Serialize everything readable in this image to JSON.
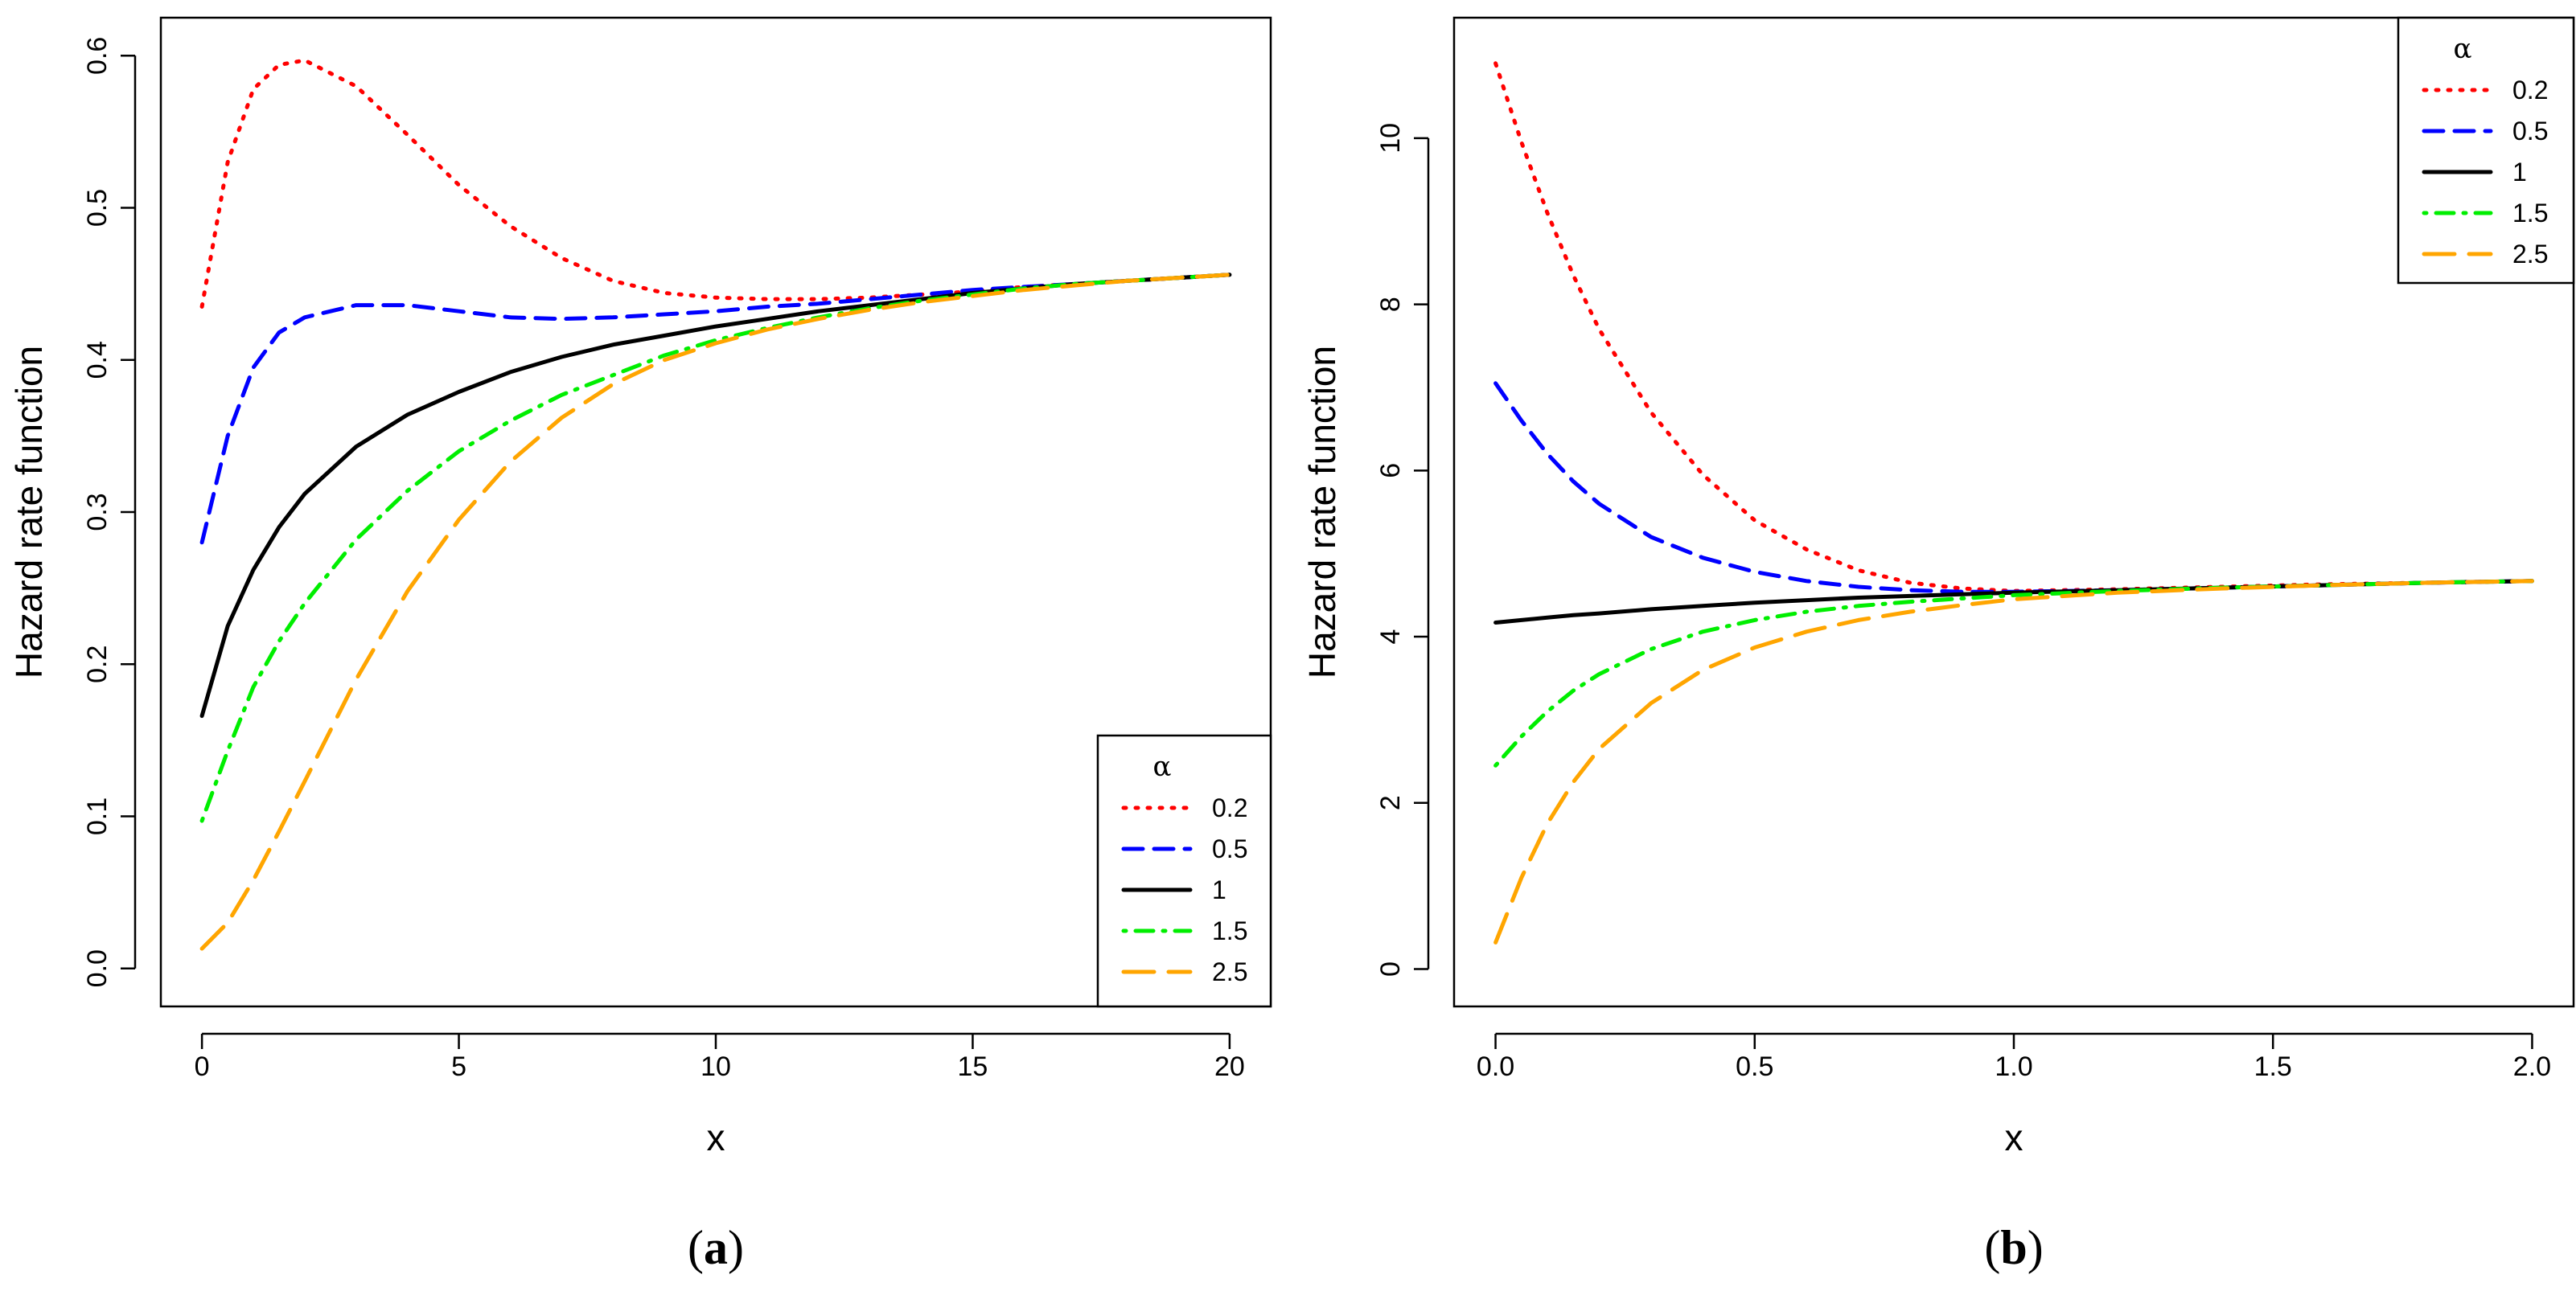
{
  "chart_data": [
    {
      "type": "line",
      "panel_label": "a",
      "xlabel": "x",
      "ylabel": "Hazard rate function",
      "xlim": [
        0,
        20
      ],
      "ylim": [
        0,
        0.6
      ],
      "xticks": [
        0,
        5,
        10,
        15,
        20
      ],
      "xtick_labels": [
        "0",
        "5",
        "10",
        "15",
        "20"
      ],
      "yticks": [
        0.0,
        0.1,
        0.2,
        0.3,
        0.4,
        0.5,
        0.6
      ],
      "ytick_labels": [
        "0.0",
        "0.1",
        "0.2",
        "0.3",
        "0.4",
        "0.5",
        "0.6"
      ],
      "legend": {
        "title": "α",
        "position": "bottom-right"
      },
      "x": [
        0,
        0.5,
        1,
        1.5,
        2,
        3,
        4,
        5,
        6,
        7,
        8,
        9,
        10,
        11,
        12,
        13,
        14,
        15,
        16,
        17,
        18,
        19,
        20
      ],
      "series": [
        {
          "name": "0.2",
          "color": "#ff0000",
          "dash": "dotted",
          "values": [
            0.435,
            0.53,
            0.578,
            0.594,
            0.597,
            0.58,
            0.548,
            0.515,
            0.488,
            0.467,
            0.452,
            0.444,
            0.441,
            0.44,
            0.44,
            0.441,
            0.443,
            0.445,
            0.448,
            0.45,
            0.452,
            0.454,
            0.456
          ]
        },
        {
          "name": "0.5",
          "color": "#0000ff",
          "dash": "dashed",
          "values": [
            0.28,
            0.35,
            0.395,
            0.418,
            0.428,
            0.436,
            0.436,
            0.432,
            0.428,
            0.427,
            0.428,
            0.43,
            0.432,
            0.435,
            0.437,
            0.44,
            0.443,
            0.446,
            0.448,
            0.45,
            0.452,
            0.454,
            0.456
          ]
        },
        {
          "name": "1",
          "color": "#000000",
          "dash": "solid",
          "values": [
            0.166,
            0.225,
            0.262,
            0.29,
            0.312,
            0.343,
            0.364,
            0.379,
            0.392,
            0.402,
            0.41,
            0.416,
            0.422,
            0.427,
            0.432,
            0.436,
            0.44,
            0.444,
            0.447,
            0.45,
            0.452,
            0.454,
            0.456
          ]
        },
        {
          "name": "1.5",
          "color": "#00ee00",
          "dash": "dotdash",
          "values": [
            0.097,
            0.143,
            0.185,
            0.215,
            0.24,
            0.282,
            0.314,
            0.34,
            0.36,
            0.377,
            0.39,
            0.403,
            0.413,
            0.421,
            0.428,
            0.434,
            0.439,
            0.443,
            0.447,
            0.45,
            0.452,
            0.454,
            0.456
          ]
        },
        {
          "name": "2.5",
          "color": "#ffa500",
          "dash": "longdash",
          "values": [
            0.013,
            0.03,
            0.058,
            0.09,
            0.123,
            0.19,
            0.248,
            0.295,
            0.333,
            0.362,
            0.384,
            0.4,
            0.411,
            0.42,
            0.427,
            0.433,
            0.438,
            0.442,
            0.446,
            0.449,
            0.452,
            0.454,
            0.456
          ]
        }
      ]
    },
    {
      "type": "line",
      "panel_label": "b",
      "xlabel": "x",
      "ylabel": "Hazard rate function",
      "xlim": [
        0,
        2
      ],
      "ylim": [
        0,
        11
      ],
      "xticks": [
        0.0,
        0.5,
        1.0,
        1.5,
        2.0
      ],
      "xtick_labels": [
        "0.0",
        "0.5",
        "1.0",
        "1.5",
        "2.0"
      ],
      "yticks": [
        0,
        2,
        4,
        6,
        8,
        10
      ],
      "ytick_labels": [
        "0",
        "2",
        "4",
        "6",
        "8",
        "10"
      ],
      "legend": {
        "title": "α",
        "position": "top-right"
      },
      "x": [
        0,
        0.05,
        0.1,
        0.15,
        0.2,
        0.3,
        0.4,
        0.5,
        0.6,
        0.7,
        0.8,
        0.9,
        1.0,
        1.2,
        1.4,
        1.6,
        1.8,
        2.0
      ],
      "series": [
        {
          "name": "0.2",
          "color": "#ff0000",
          "dash": "dotted",
          "values": [
            10.9,
            9.95,
            9.1,
            8.35,
            7.7,
            6.7,
            5.95,
            5.4,
            5.05,
            4.8,
            4.65,
            4.58,
            4.55,
            4.57,
            4.6,
            4.63,
            4.65,
            4.67
          ]
        },
        {
          "name": "0.5",
          "color": "#0000ff",
          "dash": "dashed",
          "values": [
            7.05,
            6.6,
            6.2,
            5.87,
            5.6,
            5.2,
            4.95,
            4.78,
            4.67,
            4.6,
            4.56,
            4.54,
            4.54,
            4.56,
            4.59,
            4.62,
            4.65,
            4.67
          ]
        },
        {
          "name": "1",
          "color": "#000000",
          "dash": "solid",
          "values": [
            4.17,
            4.2,
            4.23,
            4.26,
            4.28,
            4.33,
            4.37,
            4.41,
            4.44,
            4.47,
            4.49,
            4.51,
            4.53,
            4.56,
            4.59,
            4.62,
            4.65,
            4.67
          ]
        },
        {
          "name": "1.5",
          "color": "#00ee00",
          "dash": "dotdash",
          "values": [
            2.45,
            2.8,
            3.1,
            3.35,
            3.55,
            3.85,
            4.06,
            4.2,
            4.3,
            4.37,
            4.42,
            4.46,
            4.5,
            4.55,
            4.59,
            4.62,
            4.65,
            4.67
          ]
        },
        {
          "name": "2.5",
          "color": "#ffa500",
          "dash": "longdash",
          "values": [
            0.32,
            1.1,
            1.75,
            2.25,
            2.65,
            3.2,
            3.6,
            3.87,
            4.06,
            4.2,
            4.3,
            4.38,
            4.45,
            4.53,
            4.58,
            4.62,
            4.65,
            4.67
          ]
        }
      ]
    }
  ]
}
